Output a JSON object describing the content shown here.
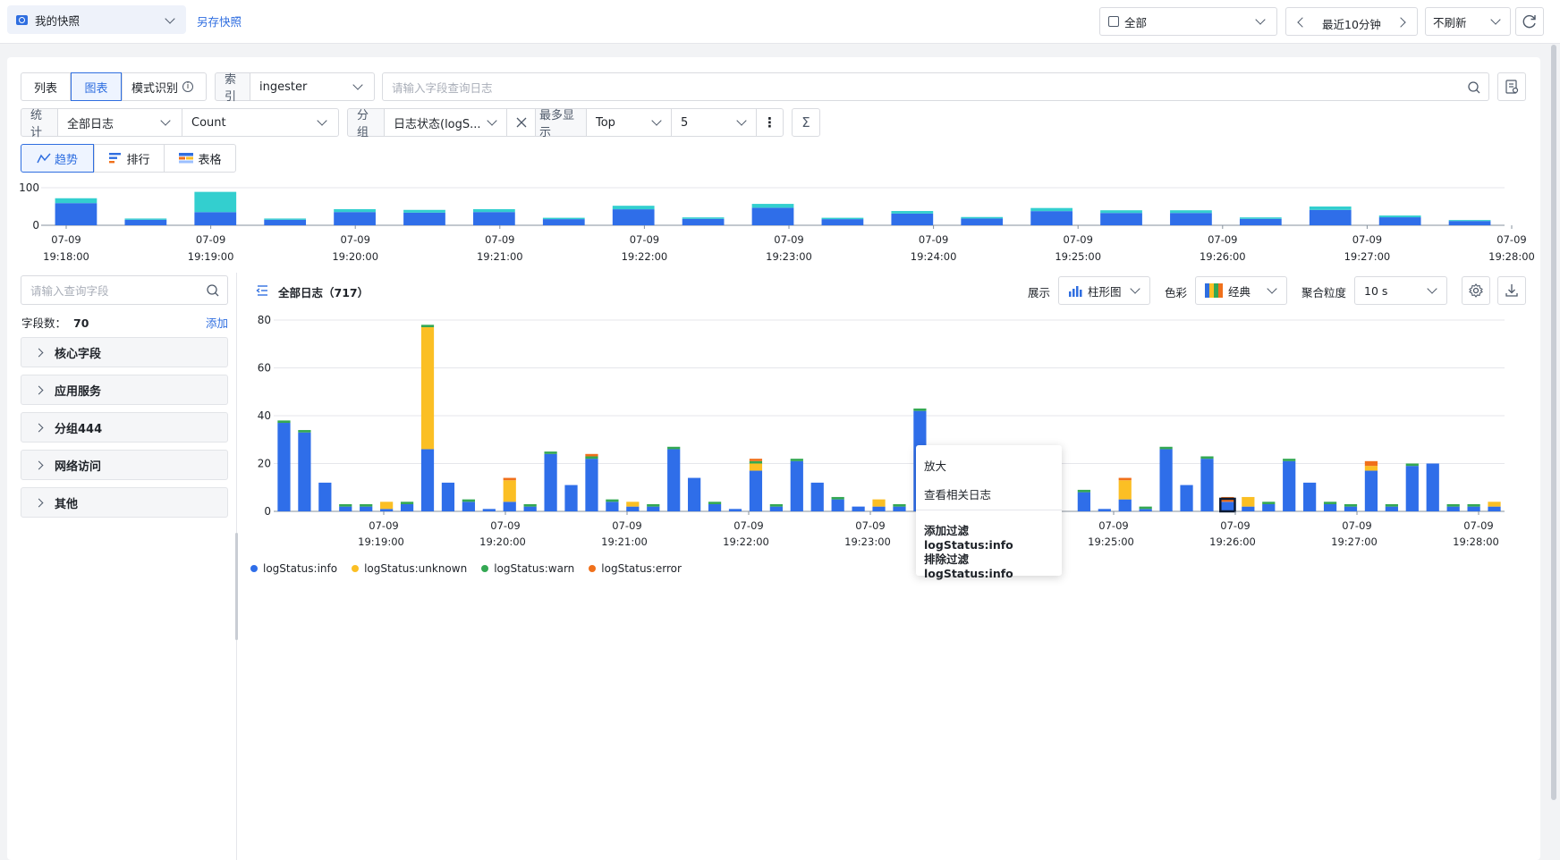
{
  "topbar": {
    "snapshot_label": "我的快照",
    "save_snapshot": "另存快照",
    "scope_select": "全部",
    "time_range": "最近10分钟",
    "refresh_select": "不刷新"
  },
  "query": {
    "tabs": [
      "列表",
      "图表",
      "模式识别"
    ],
    "active_tab": "图表",
    "index_label": "索引",
    "index_value": "ingester",
    "search_placeholder": "请输入字段查询日志"
  },
  "stats": {
    "label": "统计",
    "source": "全部日志",
    "metric": "Count",
    "group_label": "分组",
    "group_value": "日志状态(logS...",
    "max_label": "最多显示",
    "max_mode": "Top",
    "max_count": "5"
  },
  "view_tabs": [
    "趋势",
    "排行",
    "表格"
  ],
  "overview": {
    "y_max": "100",
    "y_min": "0",
    "ticks": [
      {
        "d": "07-09",
        "t": "19:18:00"
      },
      {
        "d": "07-09",
        "t": "19:19:00"
      },
      {
        "d": "07-09",
        "t": "19:20:00"
      },
      {
        "d": "07-09",
        "t": "19:21:00"
      },
      {
        "d": "07-09",
        "t": "19:22:00"
      },
      {
        "d": "07-09",
        "t": "19:23:00"
      },
      {
        "d": "07-09",
        "t": "19:24:00"
      },
      {
        "d": "07-09",
        "t": "19:25:00"
      },
      {
        "d": "07-09",
        "t": "19:26:00"
      },
      {
        "d": "07-09",
        "t": "19:27:00"
      },
      {
        "d": "07-09",
        "t": "19:28:00"
      }
    ],
    "values": [
      72,
      18,
      89,
      18,
      43,
      41,
      43,
      20,
      52,
      21,
      57,
      20,
      38,
      22,
      46,
      40,
      40,
      21,
      50,
      26,
      14
    ]
  },
  "sidebar": {
    "search_placeholder": "请输入查询字段",
    "count_label": "字段数：",
    "count_value": "70",
    "add": "添加",
    "groups": [
      "核心字段",
      "应用服务",
      "分组444",
      "网络访问",
      "其他"
    ]
  },
  "chart_header": {
    "title": "全部日志（717）",
    "display_label": "展示",
    "display_value": "柱形图",
    "color_label": "色彩",
    "color_value": "经典",
    "agg_label": "聚合粒度",
    "agg_value": "10 s"
  },
  "context_menu": [
    "放大",
    "查看相关日志",
    "添加过滤 logStatus:info",
    "排除过滤 logStatus:info"
  ],
  "colors": {
    "info": "#2f6ee9",
    "unknown": "#fbbf24",
    "warn": "#34a853",
    "error": "#f0701b",
    "overview_top": "#33cfcf",
    "accent": "#2f6ee0"
  },
  "chart_data": {
    "type": "bar",
    "stacked": true,
    "ylim": [
      0,
      80
    ],
    "yticks": [
      0,
      20,
      40,
      60,
      80
    ],
    "xticks": [
      {
        "d": "07-09",
        "t": "19:19:00"
      },
      {
        "d": "07-09",
        "t": "19:20:00"
      },
      {
        "d": "07-09",
        "t": "19:21:00"
      },
      {
        "d": "07-09",
        "t": "19:22:00"
      },
      {
        "d": "07-09",
        "t": "19:23:00"
      },
      {
        "d": "07-09",
        "t": "19:24:00"
      },
      {
        "d": "07-09",
        "t": "19:25:00"
      },
      {
        "d": "07-09",
        "t": "19:26:00"
      },
      {
        "d": "07-09",
        "t": "19:27:00"
      },
      {
        "d": "07-09",
        "t": "19:28:00"
      }
    ],
    "highlight_index": 46,
    "series": [
      {
        "name": "logStatus:info",
        "values": [
          37,
          33,
          12,
          2,
          2,
          1,
          3,
          26,
          12,
          4,
          1,
          4,
          2,
          24,
          11,
          22,
          4,
          2,
          2,
          26,
          14,
          3,
          1,
          17,
          2,
          21,
          12,
          5,
          2,
          2,
          2,
          42,
          0,
          0,
          0,
          0,
          0,
          0,
          0,
          8,
          1,
          5,
          1,
          26,
          11,
          22,
          4,
          2,
          3,
          21,
          12,
          3,
          2,
          17,
          2,
          19,
          20,
          2,
          2,
          2
        ]
      },
      {
        "name": "logStatus:unknown",
        "values": [
          0,
          0,
          0,
          0,
          0,
          3,
          0,
          51,
          0,
          0,
          0,
          9,
          0,
          0,
          0,
          0,
          0,
          2,
          0,
          0,
          0,
          0,
          0,
          3,
          0,
          0,
          0,
          0,
          0,
          3,
          0,
          0,
          0,
          0,
          0,
          0,
          0,
          0,
          0,
          0,
          0,
          8,
          0,
          0,
          0,
          0,
          0,
          4,
          0,
          0,
          0,
          0,
          0,
          2,
          0,
          0,
          0,
          0,
          0,
          2
        ]
      },
      {
        "name": "logStatus:warn",
        "values": [
          1,
          1,
          0,
          1,
          1,
          0,
          1,
          1,
          0,
          1,
          0,
          0,
          1,
          1,
          0,
          1,
          1,
          0,
          1,
          1,
          0,
          1,
          0,
          1,
          1,
          1,
          0,
          1,
          0,
          0,
          1,
          1,
          0,
          0,
          0,
          0,
          0,
          0,
          0,
          1,
          0,
          0,
          1,
          1,
          0,
          1,
          0,
          0,
          1,
          1,
          0,
          1,
          1,
          0,
          1,
          1,
          0,
          1,
          1,
          0
        ]
      },
      {
        "name": "logStatus:error",
        "values": [
          0,
          0,
          0,
          0,
          0,
          0,
          0,
          0,
          0,
          0,
          0,
          1,
          0,
          0,
          0,
          1,
          0,
          0,
          0,
          0,
          0,
          0,
          0,
          1,
          0,
          0,
          0,
          0,
          0,
          0,
          0,
          0,
          0,
          0,
          0,
          0,
          0,
          0,
          0,
          0,
          0,
          1,
          0,
          0,
          0,
          0,
          2,
          0,
          0,
          0,
          0,
          0,
          0,
          2,
          0,
          0,
          0,
          0,
          0,
          0
        ]
      }
    ]
  }
}
